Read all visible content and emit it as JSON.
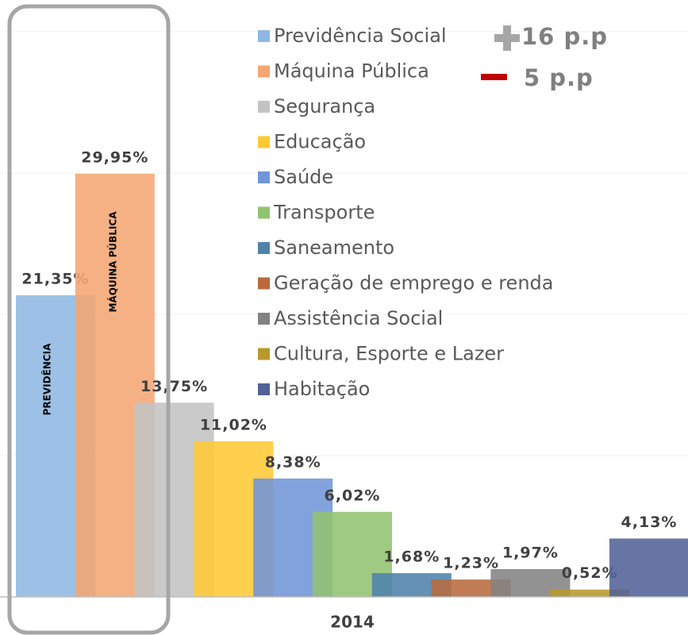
{
  "chart_data": {
    "type": "bar",
    "categories": [
      "2014"
    ],
    "series": [
      {
        "name": "Previdência Social",
        "color": "#8fb8e3",
        "values": [
          21.35
        ],
        "value_labels": [
          "21,35%"
        ]
      },
      {
        "name": "Máquina Pública",
        "color": "#f4a672",
        "values": [
          29.95
        ],
        "value_labels": [
          "29,95%"
        ]
      },
      {
        "name": "Segurança",
        "color": "#c3c3c3",
        "values": [
          13.75
        ],
        "value_labels": [
          "13,75%"
        ]
      },
      {
        "name": "Educação",
        "color": "#ffc836",
        "values": [
          11.02
        ],
        "value_labels": [
          "11,02%"
        ]
      },
      {
        "name": "Saúde",
        "color": "#7195d8",
        "values": [
          8.38
        ],
        "value_labels": [
          "8,38%"
        ]
      },
      {
        "name": "Transporte",
        "color": "#92c370",
        "values": [
          6.02
        ],
        "value_labels": [
          "6,02%"
        ]
      },
      {
        "name": "Saneamento",
        "color": "#4f82ab",
        "values": [
          1.68
        ],
        "value_labels": [
          "1,68%"
        ]
      },
      {
        "name": "Geração de emprego e renda",
        "color": "#b86a3e",
        "values": [
          1.23
        ],
        "value_labels": [
          "1,23%"
        ]
      },
      {
        "name": "Assistência Social",
        "color": "#838383",
        "values": [
          1.97
        ],
        "value_labels": [
          "1,97%"
        ]
      },
      {
        "name": "Cultura, Esporte e Lazer",
        "color": "#b8992b",
        "values": [
          0.52
        ],
        "value_labels": [
          "0,52%"
        ]
      },
      {
        "name": "Habitação",
        "color": "#526297",
        "values": [
          4.13
        ],
        "value_labels": [
          "4,13%"
        ]
      }
    ],
    "ylim": [
      0,
      40
    ],
    "yticks": [
      0,
      10,
      20,
      30,
      40
    ],
    "grid": true,
    "annotations": [
      "PREVIDÊNCIA",
      "MÁQUINA PÚBLICA",
      "16 p.p",
      "5 p.p"
    ]
  }
}
